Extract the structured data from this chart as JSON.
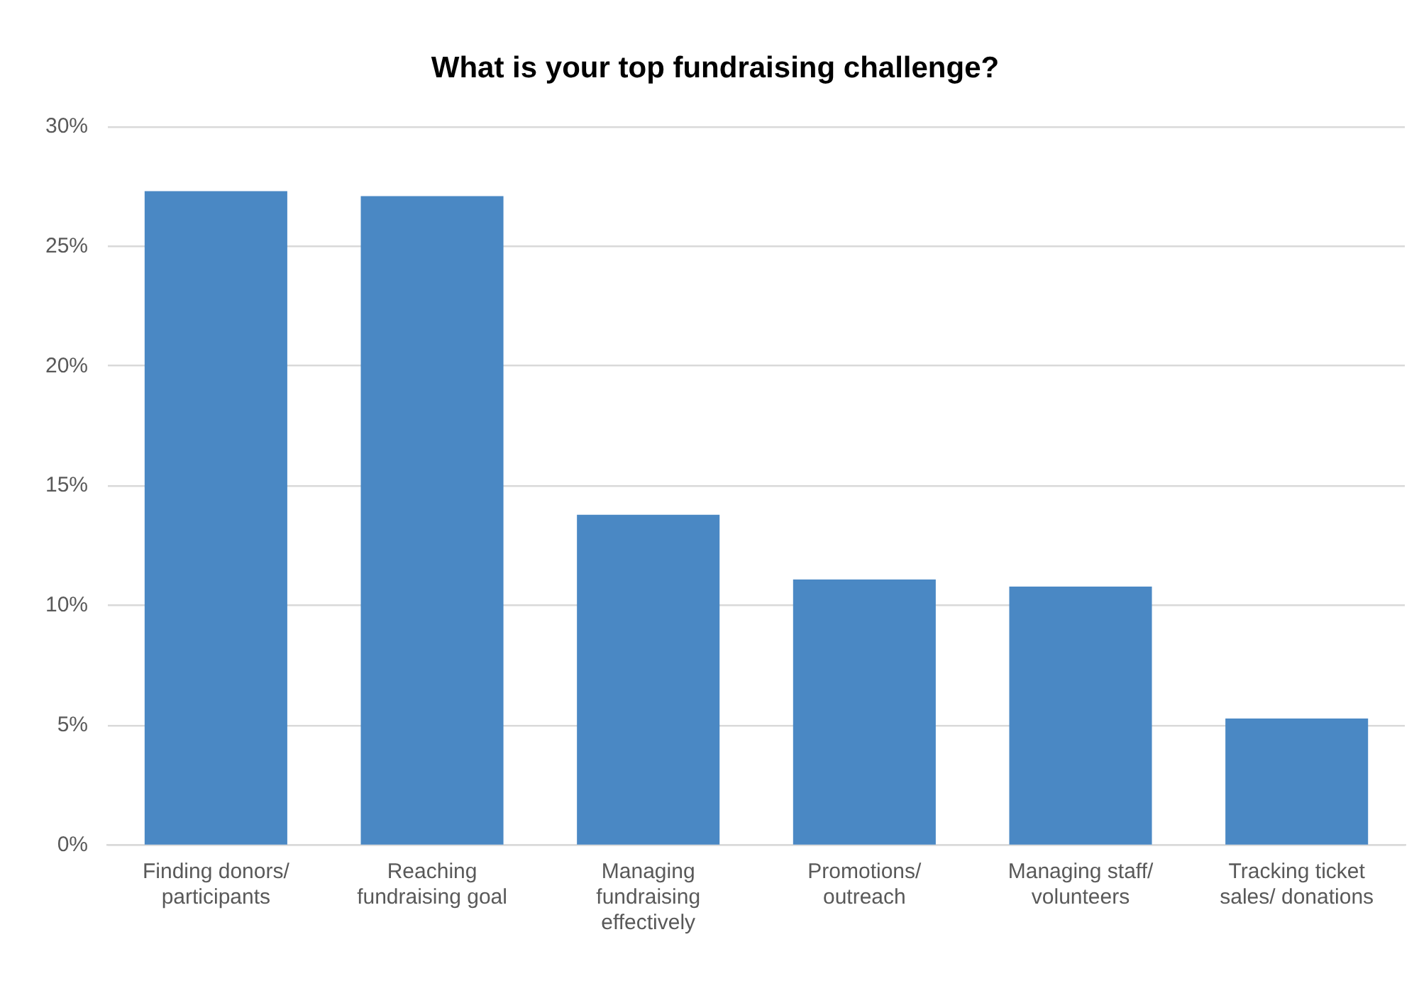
{
  "chart_data": {
    "type": "bar",
    "title": "What is your top fundraising challenge?",
    "categories": [
      "Finding donors/ participants",
      "Reaching fundraising goal",
      "Managing fundraising effectively",
      "Promotions/ outreach",
      "Managing staff/ volunteers",
      "Tracking ticket sales/ donations"
    ],
    "values": [
      27.3,
      27.1,
      13.8,
      11.1,
      10.8,
      5.3
    ],
    "color": "#4a88c4",
    "ylim": [
      0,
      30
    ],
    "yticks": [
      {
        "value": 0,
        "label": "0%"
      },
      {
        "value": 5,
        "label": "5%"
      },
      {
        "value": 10,
        "label": "10%"
      },
      {
        "value": 15,
        "label": "15%"
      },
      {
        "value": 20,
        "label": "20%"
      },
      {
        "value": 25,
        "label": "25%"
      },
      {
        "value": 30,
        "label": "30%"
      }
    ],
    "grid": "y",
    "legend": false
  }
}
